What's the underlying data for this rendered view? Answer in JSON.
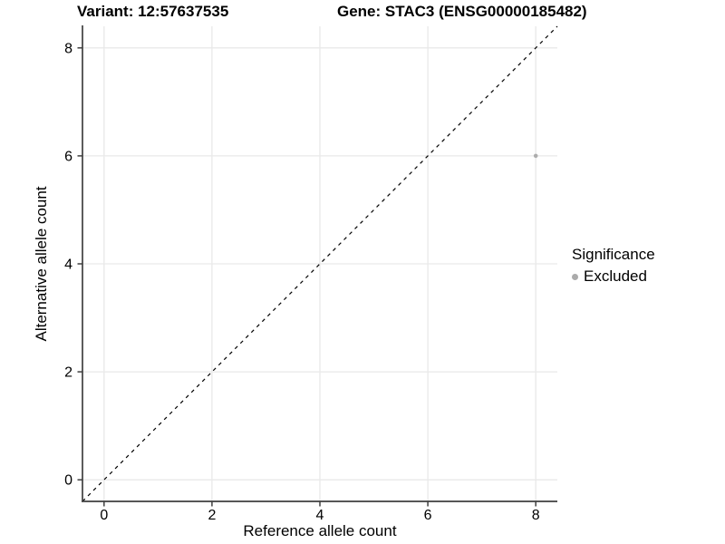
{
  "titles": {
    "variant": "Variant: 12:57637535",
    "gene": "Gene: STAC3 (ENSG00000185482)"
  },
  "chart_data": {
    "type": "scatter",
    "title_left": "Variant: 12:57637535",
    "title_right": "Gene: STAC3 (ENSG00000185482)",
    "xlabel": "Reference allele count",
    "ylabel": "Alternative allele count",
    "xlim": [
      -0.4,
      8.4
    ],
    "ylim": [
      -0.4,
      8.4
    ],
    "x_ticks": [
      0,
      2,
      4,
      6,
      8
    ],
    "y_ticks": [
      0,
      2,
      4,
      6,
      8
    ],
    "grid": "major-only",
    "points": [
      {
        "x": 8,
        "y": 6,
        "series": "Excluded"
      }
    ],
    "identity_line": {
      "style": "dashed",
      "from": [
        -0.4,
        -0.4
      ],
      "to": [
        8.4,
        8.4
      ]
    },
    "legend": {
      "title": "Significance",
      "position": "right",
      "entries": [
        {
          "label": "Excluded",
          "color": "#ABABAB",
          "marker": "circle"
        }
      ]
    }
  },
  "colors": {
    "background": "#FFFFFF",
    "grid": "#E9E9E9",
    "axis": "#3F3F3F",
    "tick": "#3F3F3F",
    "text": "#000000",
    "point": "#ADADAD",
    "identity_line": "#000000"
  }
}
